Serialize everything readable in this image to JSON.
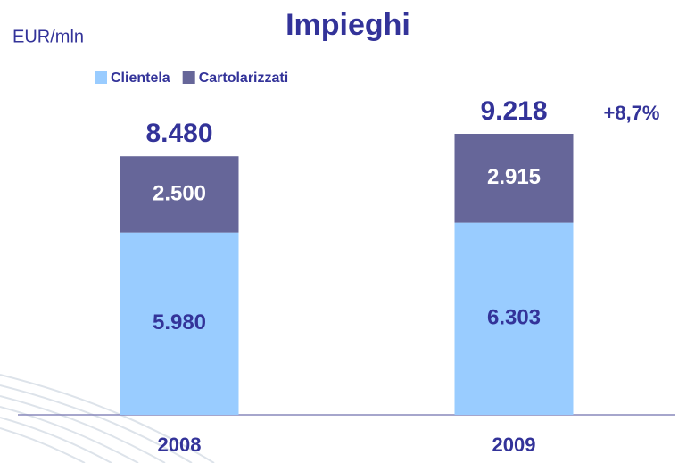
{
  "chart_data": {
    "type": "stacked-bar",
    "title": "Impieghi",
    "y_label": "EUR/mln",
    "categories": [
      "2008",
      "2009"
    ],
    "series": [
      {
        "name": "Clientela",
        "color": "#99ccff",
        "label_color": "#333399",
        "values": [
          5980,
          6303
        ],
        "value_labels": [
          "5.980",
          "6.303"
        ]
      },
      {
        "name": "Cartolarizzati",
        "color": "#666699",
        "label_color": "#ffffff",
        "values": [
          2500,
          2915
        ],
        "value_labels": [
          "2.500",
          "2.915"
        ]
      }
    ],
    "totals": {
      "values": [
        8480,
        9218
      ],
      "value_labels": [
        "8.480",
        "9.218"
      ]
    },
    "annotation": "+8,7%"
  }
}
